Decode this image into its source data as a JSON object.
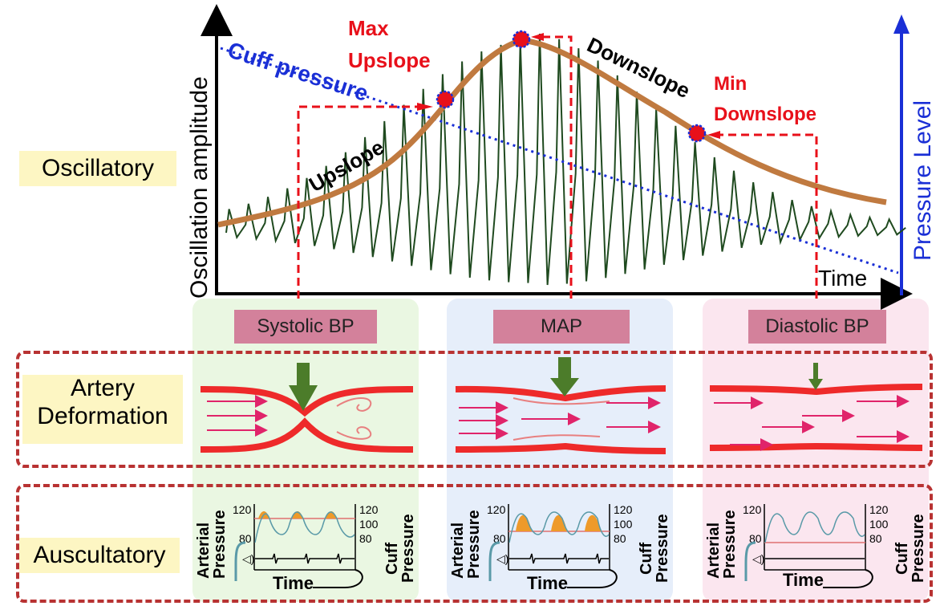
{
  "oscillatory_plot": {
    "y_axis_label": "Oscillation amplitude",
    "x_axis_label": "Time",
    "right_axis_label": "Pressure Level",
    "cuff_pressure_label": "Cuff pressure",
    "upslope_label": "Upslope",
    "downslope_label": "Downslope",
    "max_upslope_label": [
      "Max",
      "Upslope"
    ],
    "min_downslope_label": [
      "Min",
      "Downslope"
    ],
    "colors": {
      "envelope": "#c07a40",
      "oscillation": "#1f4a1f",
      "cuff_line": "#1a2fd6",
      "marker": "#e8101a",
      "axis_right": "#1a2fd6"
    }
  },
  "row_labels": {
    "oscillatory": "Oscillatory",
    "artery": [
      "Artery",
      "Deformation"
    ],
    "auscultatory": "Auscultatory"
  },
  "columns": [
    {
      "tag": "Systolic BP",
      "bg": "#eaf7e2"
    },
    {
      "tag": "MAP",
      "bg": "#e6eefa"
    },
    {
      "tag": "Diastolic BP",
      "bg": "#fbe6ef"
    }
  ],
  "auscultatory_panel": {
    "left_label": [
      "Arterial",
      "Pressure"
    ],
    "right_label": [
      "Cuff",
      "Pressure"
    ],
    "x_label": "Time",
    "ticks_left": [
      "120",
      "80"
    ],
    "ticks_right": [
      "120",
      "100",
      "80"
    ]
  }
}
